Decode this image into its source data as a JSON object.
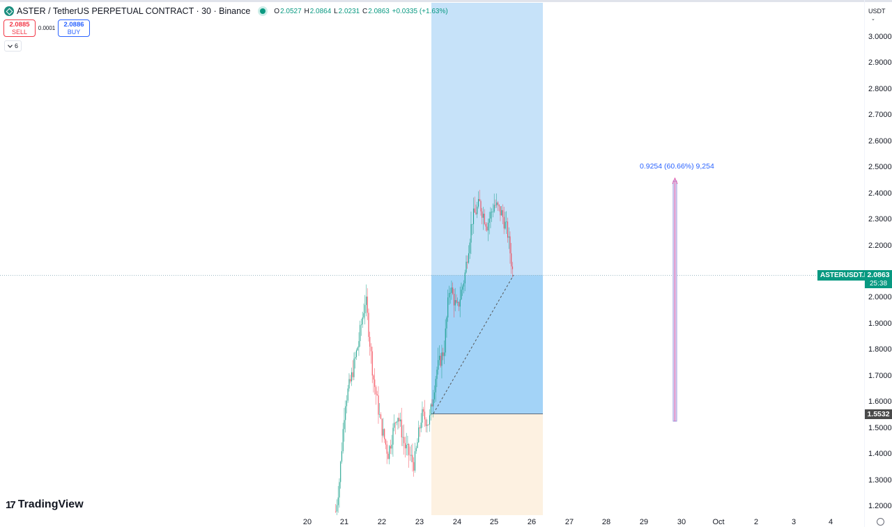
{
  "header": {
    "title": "ASTER / TetherUS PERPETUAL CONTRACT · 30 · Binance",
    "ohlc": {
      "o_label": "O",
      "o": "2.0527",
      "h_label": "H",
      "h": "2.0864",
      "l_label": "L",
      "l": "2.0231",
      "c_label": "C",
      "c": "2.0863",
      "change": "+0.0335 (+1.63%)"
    }
  },
  "trade": {
    "sell_price": "2.0885",
    "sell_label": "SELL",
    "spread": "0.0001",
    "buy_price": "2.0886",
    "buy_label": "BUY"
  },
  "indicators": {
    "collapse_icon": "chevron-down-icon",
    "count": "6"
  },
  "price_axis": {
    "currency": "USDT",
    "ticks": [
      "3.0000",
      "2.9000",
      "2.8000",
      "2.7000",
      "2.6000",
      "2.5000",
      "2.4000",
      "2.3000",
      "2.2000",
      "2.1000",
      "2.0000",
      "1.9000",
      "1.8000",
      "1.7000",
      "1.6000",
      "1.5000",
      "1.4000",
      "1.3000",
      "1.2000"
    ],
    "last_price": "2.0863",
    "countdown": "25:38",
    "symbol_tag": "ASTERUSDT.P",
    "entry_price": "1.5532"
  },
  "time_axis": {
    "labels": [
      "20",
      "21",
      "22",
      "23",
      "24",
      "25",
      "26",
      "27",
      "28",
      "29",
      "30",
      "Oct",
      "2",
      "3",
      "4"
    ]
  },
  "measure": {
    "label": "0.9254 (60.66%) 9,254"
  },
  "logo": {
    "text": "TradingView"
  },
  "colors": {
    "up": "#089981",
    "down": "#f23645",
    "profit_zone": "#bbdefb",
    "loss_zone": "#fff3e0",
    "accent": "#2962ff"
  },
  "chart_data": {
    "type": "candlestick",
    "symbol": "ASTERUSDT.P",
    "interval": "30",
    "ylim": [
      1.17,
      3.05
    ],
    "last": 2.0863,
    "position": {
      "type": "long",
      "entry": 1.5532,
      "target": 3.0
    },
    "measure": {
      "from": 1.525,
      "to": 2.4504,
      "change": "0.9254 (60.66%)"
    },
    "price_path": [
      {
        "day": 20.75,
        "price": 1.18
      },
      {
        "day": 20.85,
        "price": 1.3
      },
      {
        "day": 21.0,
        "price": 1.6
      },
      {
        "day": 21.15,
        "price": 1.68
      },
      {
        "day": 21.35,
        "price": 1.82
      },
      {
        "day": 21.55,
        "price": 2.0
      },
      {
        "day": 21.75,
        "price": 1.7
      },
      {
        "day": 21.95,
        "price": 1.52
      },
      {
        "day": 22.15,
        "price": 1.4
      },
      {
        "day": 22.4,
        "price": 1.56
      },
      {
        "day": 22.6,
        "price": 1.43
      },
      {
        "day": 22.85,
        "price": 1.36
      },
      {
        "day": 23.05,
        "price": 1.55
      },
      {
        "day": 23.25,
        "price": 1.52
      },
      {
        "day": 23.45,
        "price": 1.72
      },
      {
        "day": 23.65,
        "price": 1.8
      },
      {
        "day": 23.8,
        "price": 2.05
      },
      {
        "day": 24.0,
        "price": 1.95
      },
      {
        "day": 24.2,
        "price": 2.08
      },
      {
        "day": 24.4,
        "price": 2.3
      },
      {
        "day": 24.6,
        "price": 2.36
      },
      {
        "day": 24.8,
        "price": 2.28
      },
      {
        "day": 25.0,
        "price": 2.36
      },
      {
        "day": 25.2,
        "price": 2.32
      },
      {
        "day": 25.35,
        "price": 2.25
      },
      {
        "day": 25.5,
        "price": 2.0863
      }
    ]
  }
}
